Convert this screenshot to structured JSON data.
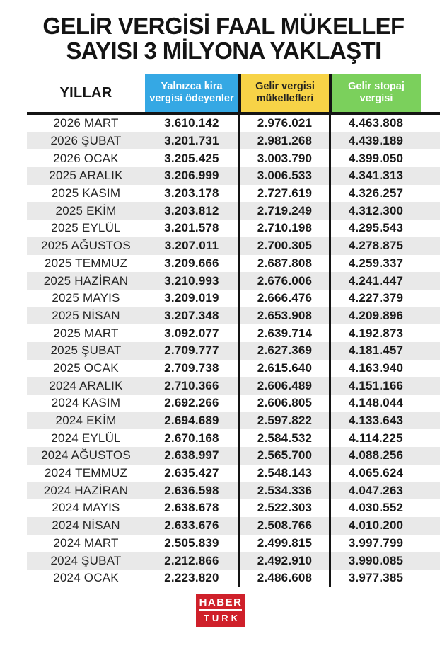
{
  "title": {
    "line1": "GELİR VERGİSİ FAAL MÜKELLEF",
    "line2": "SAYISI 3 MİLYONA YAKLAŞTI"
  },
  "chart_data": {
    "type": "table",
    "title": "GELİR VERGİSİ FAAL MÜKELLEF SAYISI 3 MİLYONA YAKLAŞTI",
    "row_header_label": "YILLAR",
    "columns": [
      {
        "label": "Yalnızca kira vergisi ödeyenler",
        "header_bg": "#35A8E4",
        "header_text": "#ffffff"
      },
      {
        "label": "Gelir vergisi mükellefleri",
        "header_bg": "#F7D347",
        "header_text": "#22211f"
      },
      {
        "label": "Gelir stopaj vergisi",
        "header_bg": "#7BD05C",
        "header_text": "#ffffff"
      }
    ],
    "rows": [
      {
        "period": "2026 MART",
        "values": [
          "3.610.142",
          "2.976.021",
          "4.463.808"
        ]
      },
      {
        "period": "2026 ŞUBAT",
        "values": [
          "3.201.731",
          "2.981.268",
          "4.439.189"
        ]
      },
      {
        "period": "2026 OCAK",
        "values": [
          "3.205.425",
          "3.003.790",
          "4.399.050"
        ]
      },
      {
        "period": "2025 ARALIK",
        "values": [
          "3.206.999",
          "3.006.533",
          "4.341.313"
        ]
      },
      {
        "period": "2025 KASIM",
        "values": [
          "3.203.178",
          "2.727.619",
          "4.326.257"
        ]
      },
      {
        "period": "2025 EKİM",
        "values": [
          "3.203.812",
          "2.719.249",
          "4.312.300"
        ]
      },
      {
        "period": "2025 EYLÜL",
        "values": [
          "3.201.578",
          "2.710.198",
          "4.295.543"
        ]
      },
      {
        "period": "2025 AĞUSTOS",
        "values": [
          "3.207.011",
          "2.700.305",
          "4.278.875"
        ]
      },
      {
        "period": "2025 TEMMUZ",
        "values": [
          "3.209.666",
          "2.687.808",
          "4.259.337"
        ]
      },
      {
        "period": "2025 HAZİRAN",
        "values": [
          "3.210.993",
          "2.676.006",
          "4.241.447"
        ]
      },
      {
        "period": "2025 MAYIS",
        "values": [
          "3.209.019",
          "2.666.476",
          "4.227.379"
        ]
      },
      {
        "period": "2025 NİSAN",
        "values": [
          "3.207.348",
          "2.653.908",
          "4.209.896"
        ]
      },
      {
        "period": "2025 MART",
        "values": [
          "3.092.077",
          "2.639.714",
          "4.192.873"
        ]
      },
      {
        "period": "2025 ŞUBAT",
        "values": [
          "2.709.777",
          "2.627.369",
          "4.181.457"
        ]
      },
      {
        "period": "2025 OCAK",
        "values": [
          "2.709.738",
          "2.615.640",
          "4.163.940"
        ]
      },
      {
        "period": "2024 ARALIK",
        "values": [
          "2.710.366",
          "2.606.489",
          "4.151.166"
        ]
      },
      {
        "period": "2024 KASIM",
        "values": [
          "2.692.266",
          "2.606.805",
          "4.148.044"
        ]
      },
      {
        "period": "2024 EKİM",
        "values": [
          "2.694.689",
          "2.597.822",
          "4.133.643"
        ]
      },
      {
        "period": "2024 EYLÜL",
        "values": [
          "2.670.168",
          "2.584.532",
          "4.114.225"
        ]
      },
      {
        "period": "2024 AĞUSTOS",
        "values": [
          "2.638.997",
          "2.565.700",
          "4.088.256"
        ]
      },
      {
        "period": "2024 TEMMUZ",
        "values": [
          "2.635.427",
          "2.548.143",
          "4.065.624"
        ]
      },
      {
        "period": "2024 HAZİRAN",
        "values": [
          "2.636.598",
          "2.534.336",
          "4.047.263"
        ]
      },
      {
        "period": "2024 MAYIS",
        "values": [
          "2.638.678",
          "2.522.303",
          "4.030.552"
        ]
      },
      {
        "period": "2024 NİSAN",
        "values": [
          "2.633.676",
          "2.508.766",
          "4.010.200"
        ]
      },
      {
        "period": "2024 MART",
        "values": [
          "2.505.839",
          "2.499.815",
          "3.997.799"
        ]
      },
      {
        "period": "2024 ŞUBAT",
        "values": [
          "2.212.866",
          "2.492.910",
          "3.990.085"
        ]
      },
      {
        "period": "2024 OCAK",
        "values": [
          "2.223.820",
          "2.486.608",
          "3.977.385"
        ]
      }
    ]
  },
  "footer": {
    "brand_top": "HABER",
    "brand_bottom": "TURK",
    "brand_bg": "#CF202A"
  },
  "colors": {
    "stripe": "#e9e9e9",
    "rule": "#141414",
    "background": "#ffffff"
  }
}
